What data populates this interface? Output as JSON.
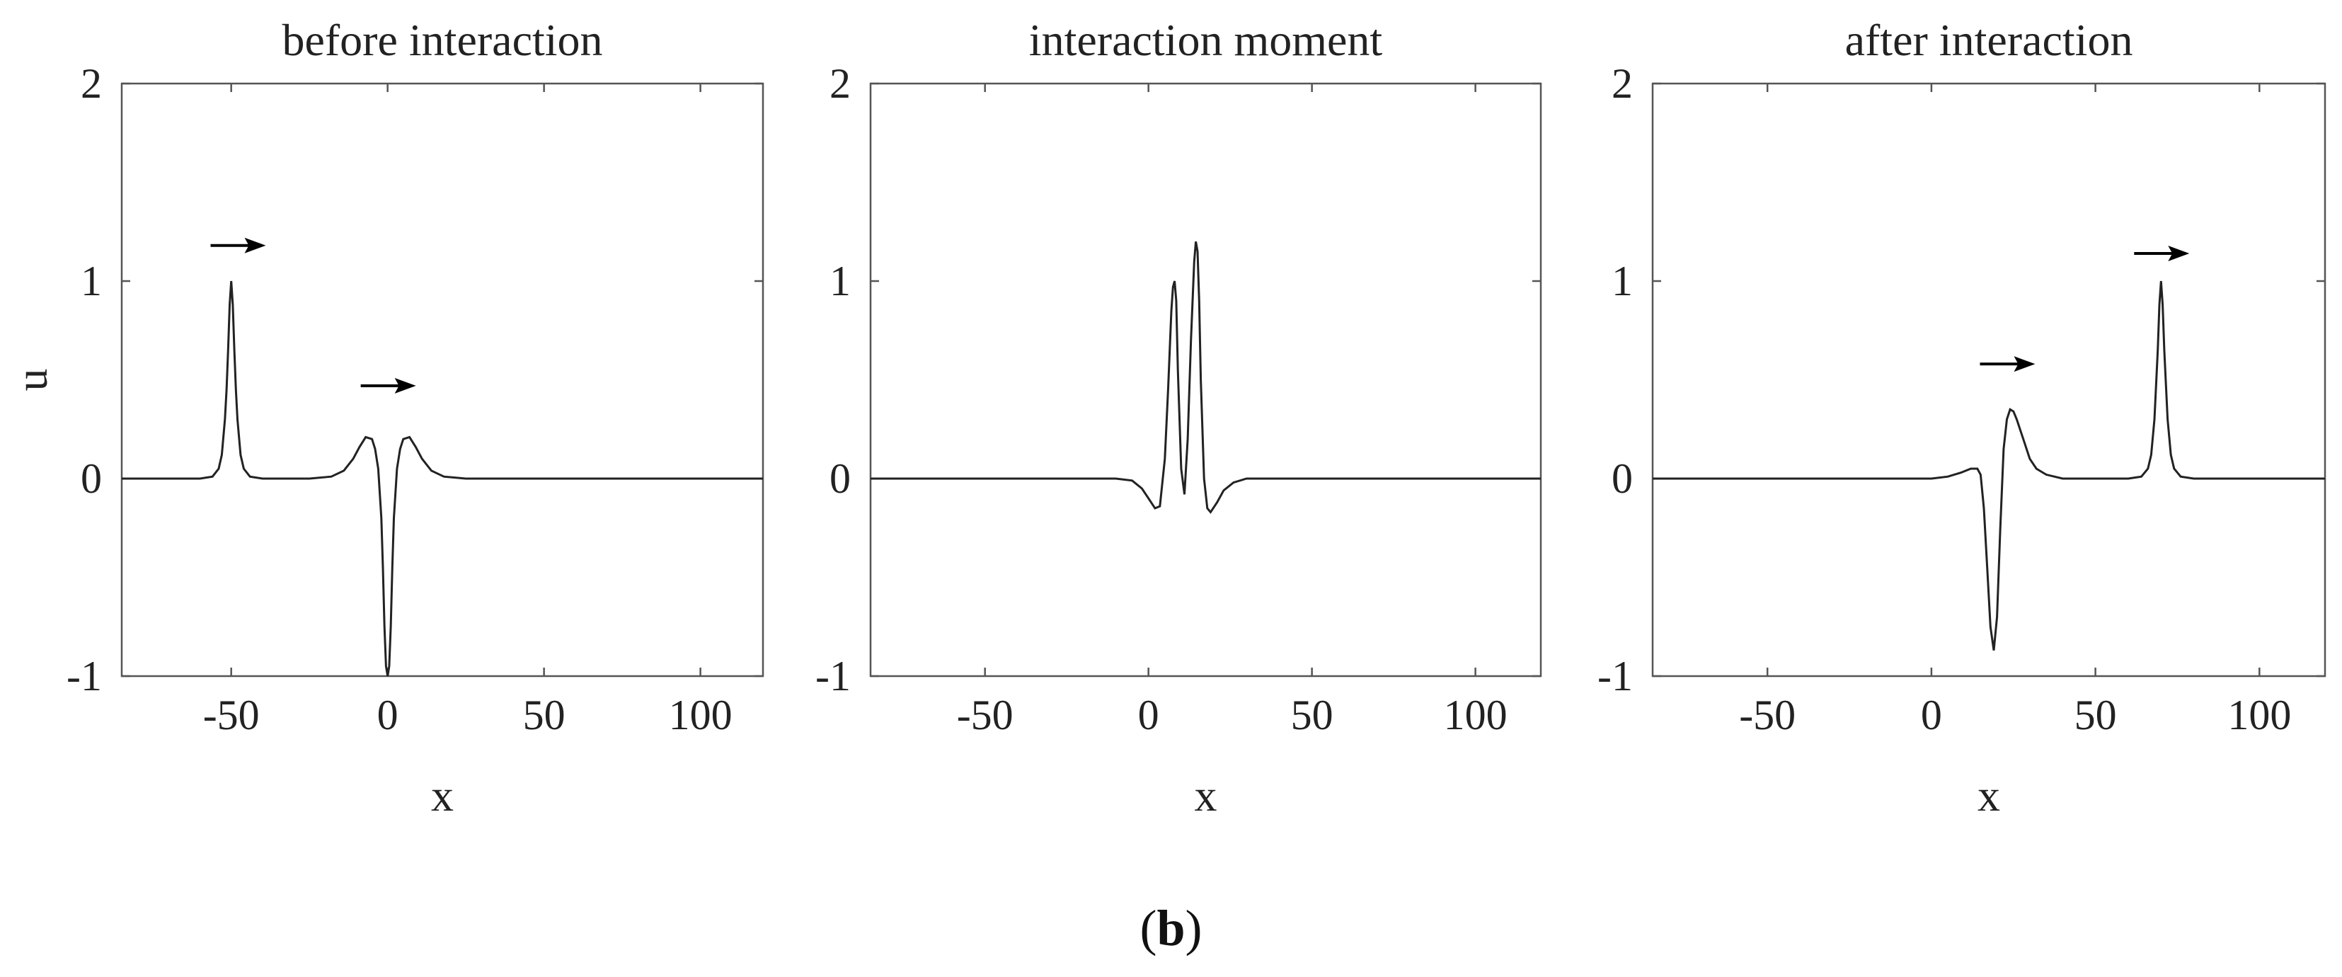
{
  "caption": {
    "open": "(",
    "letter": "b",
    "close": ")"
  },
  "chart_data": [
    {
      "type": "line",
      "title": "before interaction",
      "xlabel": "x",
      "ylabel": "u",
      "xlim": [
        -85,
        120
      ],
      "ylim": [
        -1,
        2
      ],
      "xticks": [
        -50,
        0,
        50,
        100
      ],
      "yticks": [
        -1,
        0,
        1,
        2
      ],
      "grid": false,
      "arrows": [
        {
          "x": -48,
          "y": 1.18
        },
        {
          "x": 0,
          "y": 0.47
        }
      ],
      "series": [
        {
          "x": [
            -85,
            -60,
            -56,
            -54,
            -53,
            -52,
            -51.5,
            -51,
            -50.5,
            -50,
            -49.5,
            -49,
            -48.5,
            -48,
            -47,
            -46,
            -44,
            -40,
            -25,
            -18,
            -14,
            -11,
            -9,
            -7,
            -5,
            -4,
            -3,
            -2,
            -1.5,
            -1,
            -0.5,
            0,
            0.5,
            1,
            1.5,
            2,
            3,
            4,
            5,
            7,
            9,
            11,
            14,
            18,
            25,
            40,
            120
          ],
          "y": [
            0,
            0,
            0.01,
            0.05,
            0.12,
            0.3,
            0.45,
            0.65,
            0.88,
            1.0,
            0.88,
            0.65,
            0.45,
            0.3,
            0.12,
            0.05,
            0.01,
            0,
            0,
            0.01,
            0.04,
            0.1,
            0.16,
            0.21,
            0.2,
            0.15,
            0.05,
            -0.2,
            -0.45,
            -0.75,
            -0.95,
            -1.0,
            -0.95,
            -0.75,
            -0.45,
            -0.2,
            0.05,
            0.15,
            0.2,
            0.21,
            0.16,
            0.1,
            0.04,
            0.01,
            0,
            0,
            0
          ]
        }
      ]
    },
    {
      "type": "line",
      "title": "interaction moment",
      "xlabel": "x",
      "xlim": [
        -85,
        120
      ],
      "ylim": [
        -1,
        2
      ],
      "xticks": [
        -50,
        0,
        50,
        100
      ],
      "yticks": [
        -1,
        0,
        1,
        2
      ],
      "grid": false,
      "series": [
        {
          "x": [
            -85,
            -10,
            -5,
            -2,
            0,
            2,
            3.5,
            5,
            6,
            7,
            7.5,
            8,
            8.5,
            9,
            10,
            11,
            12,
            13,
            14,
            14.5,
            15,
            15.5,
            16,
            17,
            18,
            19,
            21,
            23,
            26,
            30,
            120
          ],
          "y": [
            0,
            0,
            -0.01,
            -0.05,
            -0.1,
            -0.15,
            -0.14,
            0.1,
            0.45,
            0.85,
            0.97,
            1.0,
            0.9,
            0.55,
            0.05,
            -0.08,
            0.2,
            0.7,
            1.1,
            1.2,
            1.15,
            0.9,
            0.5,
            0.0,
            -0.15,
            -0.17,
            -0.12,
            -0.06,
            -0.02,
            0,
            0
          ]
        }
      ]
    },
    {
      "type": "line",
      "title": "after interaction",
      "xlabel": "x",
      "xlim": [
        -85,
        120
      ],
      "ylim": [
        -1,
        2
      ],
      "xticks": [
        -50,
        0,
        50,
        100
      ],
      "yticks": [
        -1,
        0,
        1,
        2
      ],
      "grid": false,
      "arrows": [
        {
          "x": 23,
          "y": 0.58
        },
        {
          "x": 70,
          "y": 1.14
        }
      ],
      "series": [
        {
          "x": [
            -85,
            0,
            5,
            9,
            12,
            14,
            15,
            16,
            17,
            18,
            19,
            20,
            21,
            22,
            23,
            24,
            25,
            26,
            28,
            30,
            32,
            35,
            40,
            50,
            60,
            64,
            66,
            67,
            68,
            69,
            69.5,
            70,
            70.5,
            71,
            72,
            73,
            74,
            76,
            80,
            120
          ],
          "y": [
            0,
            0,
            0.01,
            0.03,
            0.05,
            0.05,
            0.02,
            -0.15,
            -0.45,
            -0.75,
            -0.87,
            -0.7,
            -0.25,
            0.15,
            0.3,
            0.35,
            0.34,
            0.3,
            0.2,
            0.1,
            0.05,
            0.02,
            0,
            0,
            0,
            0.01,
            0.05,
            0.12,
            0.3,
            0.65,
            0.88,
            1.0,
            0.88,
            0.65,
            0.3,
            0.12,
            0.05,
            0.01,
            0,
            0
          ]
        }
      ]
    }
  ]
}
